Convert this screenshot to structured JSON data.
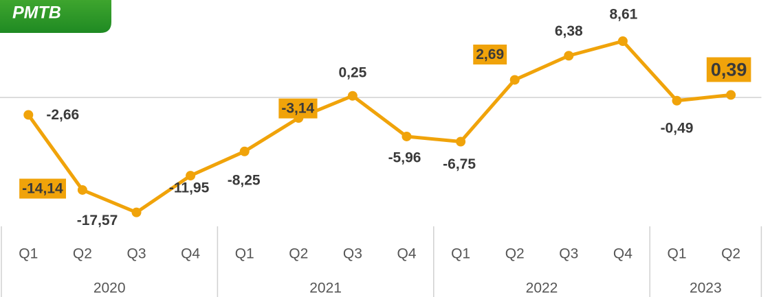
{
  "chart_data": {
    "type": "line",
    "title": "PMTB",
    "groups": [
      {
        "label": "2020",
        "categories": [
          "Q1",
          "Q2",
          "Q3",
          "Q4"
        ]
      },
      {
        "label": "2021",
        "categories": [
          "Q1",
          "Q2",
          "Q3",
          "Q4"
        ]
      },
      {
        "label": "2022",
        "categories": [
          "Q1",
          "Q2",
          "Q3",
          "Q4"
        ]
      },
      {
        "label": "2023",
        "categories": [
          "Q1",
          "Q2"
        ]
      }
    ],
    "values": [
      -2.66,
      -14.14,
      -17.57,
      -11.95,
      -8.25,
      -3.14,
      0.25,
      -5.96,
      -6.75,
      2.69,
      6.38,
      8.61,
      -0.49,
      0.39
    ],
    "value_labels": [
      "-2,66",
      "-14,14",
      "-17,57",
      "-11,95",
      "-8,25",
      "-3,14",
      "0,25",
      "-5,96",
      "-6,75",
      "2,69",
      "6,38",
      "8,61",
      "-0,49",
      "0,39"
    ],
    "color": "#f0a30a",
    "ylim": [
      -19.7,
      14.9
    ]
  }
}
